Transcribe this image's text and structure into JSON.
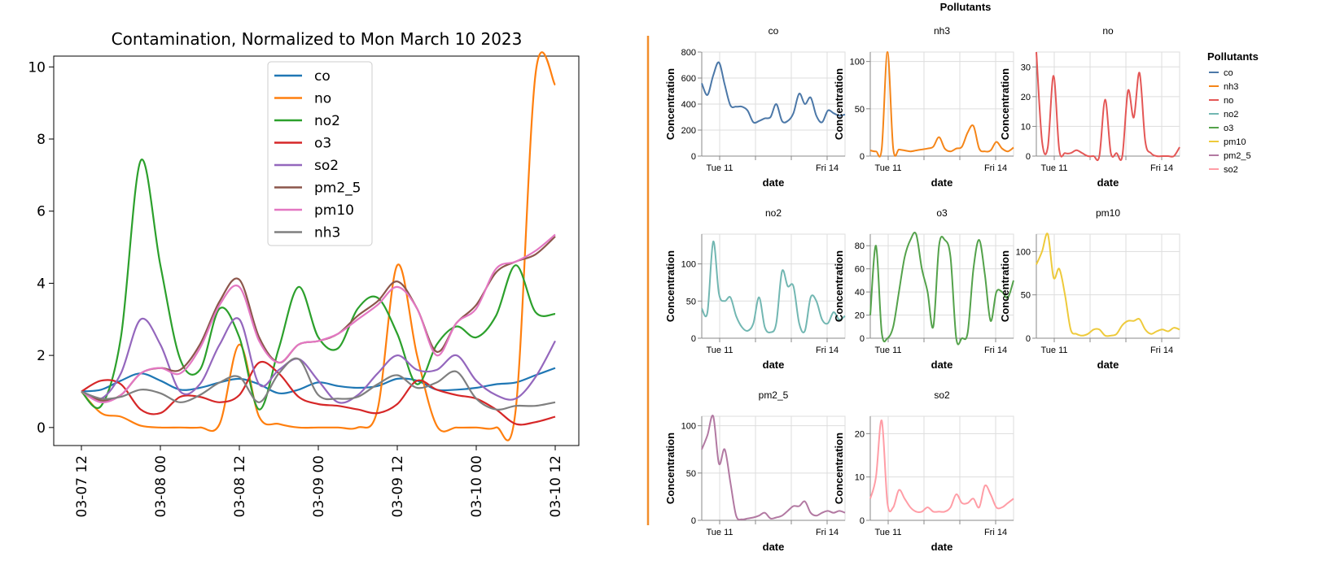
{
  "divider_color": "#f28e2b",
  "chart_data": [
    {
      "type": "line",
      "title": "Contamination, Normalized to Mon March 10 2023",
      "xlabel": "",
      "ylabel": "",
      "x": [
        "03-07 12:00",
        "03-07 15:00",
        "03-07 18:00",
        "03-07 21:00",
        "03-08 00:00",
        "03-08 03:00",
        "03-08 06:00",
        "03-08 09:00",
        "03-08 12:00",
        "03-08 15:00",
        "03-08 18:00",
        "03-08 21:00",
        "03-09 00:00",
        "03-09 03:00",
        "03-09 06:00",
        "03-09 09:00",
        "03-09 12:00",
        "03-09 15:00",
        "03-09 18:00",
        "03-09 21:00",
        "03-10 00:00",
        "03-10 03:00",
        "03-10 06:00",
        "03-10 09:00",
        "03-10 12:00"
      ],
      "xticks": [
        "03-07 12",
        "03-08 00",
        "03-08 12",
        "03-09 00",
        "03-09 12",
        "03-10 00",
        "03-10 12"
      ],
      "ylim": [
        -0.5,
        10.3
      ],
      "yticks": [
        0,
        2,
        4,
        6,
        8,
        10
      ],
      "legend_position": "upper-center",
      "series": [
        {
          "name": "co",
          "color": "#1f77b4",
          "values": [
            1.0,
            1.05,
            1.3,
            1.5,
            1.3,
            1.05,
            1.1,
            1.25,
            1.35,
            1.2,
            0.95,
            1.05,
            1.25,
            1.15,
            1.1,
            1.15,
            1.35,
            1.3,
            1.05,
            1.05,
            1.1,
            1.2,
            1.25,
            1.45,
            1.65
          ]
        },
        {
          "name": "no",
          "color": "#ff7f0e",
          "values": [
            1.0,
            0.4,
            0.3,
            0.05,
            0.0,
            0.0,
            0.0,
            0.1,
            2.3,
            0.3,
            0.1,
            0.0,
            0.0,
            0.0,
            0.0,
            0.5,
            4.5,
            2.0,
            0.05,
            0.0,
            0.0,
            0.0,
            0.5,
            9.8,
            9.5
          ]
        },
        {
          "name": "no2",
          "color": "#2ca02c",
          "values": [
            1.0,
            0.6,
            2.5,
            7.4,
            4.5,
            1.9,
            1.6,
            3.3,
            2.5,
            0.5,
            2.2,
            3.9,
            2.5,
            2.2,
            3.3,
            3.6,
            2.6,
            1.2,
            2.3,
            2.8,
            2.5,
            3.1,
            4.5,
            3.2,
            3.15
          ]
        },
        {
          "name": "o3",
          "color": "#d62728",
          "values": [
            1.0,
            1.3,
            1.2,
            0.5,
            0.4,
            0.85,
            0.85,
            0.7,
            0.9,
            1.8,
            1.5,
            0.85,
            0.65,
            0.6,
            0.5,
            0.4,
            0.65,
            1.3,
            1.05,
            0.9,
            0.8,
            0.5,
            0.1,
            0.15,
            0.3
          ]
        },
        {
          "name": "so2",
          "color": "#9467bd",
          "values": [
            1.0,
            0.8,
            1.5,
            3.0,
            2.3,
            1.0,
            1.2,
            2.3,
            3.0,
            1.2,
            1.6,
            1.9,
            1.3,
            0.7,
            0.9,
            1.5,
            2.0,
            1.6,
            1.6,
            2.0,
            1.3,
            0.9,
            0.8,
            1.4,
            2.4
          ]
        },
        {
          "name": "pm2_5",
          "color": "#8c564b",
          "values": [
            1.0,
            0.75,
            0.9,
            1.5,
            1.65,
            1.6,
            2.3,
            3.5,
            4.1,
            2.5,
            1.8,
            2.3,
            2.4,
            2.6,
            3.1,
            3.5,
            4.05,
            3.3,
            2.1,
            2.9,
            3.4,
            4.3,
            4.6,
            4.8,
            5.3
          ]
        },
        {
          "name": "pm10",
          "color": "#e377c2",
          "values": [
            1.0,
            0.7,
            0.9,
            1.5,
            1.65,
            1.5,
            2.2,
            3.4,
            3.9,
            2.4,
            1.8,
            2.3,
            2.4,
            2.6,
            3.0,
            3.4,
            3.9,
            3.3,
            2.0,
            2.9,
            3.3,
            4.4,
            4.6,
            4.9,
            5.35
          ]
        },
        {
          "name": "nh3",
          "color": "#7f7f7f",
          "values": [
            1.0,
            0.8,
            0.85,
            1.05,
            0.95,
            0.7,
            0.9,
            1.25,
            1.4,
            0.7,
            1.5,
            1.9,
            0.9,
            0.8,
            0.85,
            1.2,
            1.45,
            1.1,
            1.25,
            1.55,
            0.8,
            0.5,
            0.6,
            0.6,
            0.7
          ]
        }
      ]
    },
    {
      "type": "line",
      "title": "Pollutants",
      "facet_by": "Pollutants",
      "x_dates": [
        "2023-03-10T12:00",
        "2023-03-14T12:00"
      ],
      "xticks": [
        {
          "date": "2023-03-11",
          "label": "Tue 11"
        },
        {
          "date": "2023-03-14",
          "label": "Fri 14"
        }
      ],
      "xlabel": "date",
      "ylabel": "Concentration",
      "legend": {
        "title": "Pollutants",
        "position": "right"
      },
      "grid": true,
      "facets": [
        {
          "name": "co",
          "color": "#4c78a8",
          "ylim": [
            0,
            800
          ],
          "yticks": [
            0,
            200,
            400,
            600,
            800
          ],
          "values": [
            560,
            470,
            620,
            720,
            550,
            390,
            380,
            380,
            350,
            260,
            270,
            290,
            300,
            400,
            270,
            270,
            330,
            480,
            400,
            450,
            310,
            260,
            350,
            330,
            310,
            320
          ]
        },
        {
          "name": "nh3",
          "color": "#f58518",
          "ylim": [
            0,
            110
          ],
          "yticks": [
            0,
            50,
            100
          ],
          "values": [
            6,
            5,
            8,
            112,
            8,
            7,
            6,
            5,
            6,
            7,
            8,
            10,
            20,
            8,
            5,
            8,
            10,
            25,
            32,
            8,
            5,
            6,
            15,
            8,
            5,
            9
          ]
        },
        {
          "name": "no",
          "color": "#e45756",
          "ylim": [
            0,
            35
          ],
          "yticks": [
            0,
            10,
            20,
            30
          ],
          "values": [
            35,
            5,
            3,
            27,
            2,
            1,
            1,
            2,
            1,
            0,
            0,
            0,
            19,
            1,
            1,
            0,
            22,
            13,
            28,
            5,
            1,
            0,
            0,
            0,
            0,
            3
          ]
        },
        {
          "name": "no2",
          "color": "#72b7b2",
          "ylim": [
            0,
            140
          ],
          "yticks": [
            0,
            50,
            100
          ],
          "values": [
            40,
            35,
            130,
            60,
            50,
            55,
            30,
            15,
            10,
            20,
            55,
            15,
            8,
            20,
            90,
            70,
            70,
            20,
            10,
            55,
            50,
            25,
            20,
            35,
            25,
            30
          ]
        },
        {
          "name": "o3",
          "color": "#54a24b",
          "ylim": [
            0,
            90
          ],
          "yticks": [
            0,
            20,
            40,
            60,
            80
          ],
          "values": [
            20,
            80,
            5,
            0,
            10,
            40,
            70,
            85,
            90,
            60,
            40,
            10,
            80,
            85,
            70,
            0,
            0,
            5,
            60,
            85,
            55,
            15,
            40,
            40,
            35,
            50
          ]
        },
        {
          "name": "pm10",
          "color": "#eeca3b",
          "ylim": [
            0,
            120
          ],
          "yticks": [
            0,
            50,
            100
          ],
          "values": [
            85,
            100,
            120,
            70,
            80,
            50,
            10,
            5,
            3,
            5,
            10,
            10,
            3,
            3,
            5,
            15,
            20,
            20,
            22,
            10,
            5,
            8,
            10,
            8,
            12,
            10
          ]
        },
        {
          "name": "pm2_5",
          "color": "#b279a2",
          "ylim": [
            0,
            110
          ],
          "yticks": [
            0,
            50,
            100
          ],
          "values": [
            75,
            90,
            110,
            60,
            75,
            40,
            5,
            1,
            2,
            3,
            5,
            8,
            2,
            3,
            5,
            10,
            15,
            15,
            20,
            8,
            5,
            8,
            10,
            8,
            10,
            8
          ]
        },
        {
          "name": "so2",
          "color": "#ff9da6",
          "ylim": [
            0,
            24
          ],
          "yticks": [
            0,
            10,
            20
          ],
          "values": [
            5,
            10,
            23,
            4,
            3,
            7,
            5,
            3,
            2,
            2,
            3,
            2,
            2,
            2,
            3,
            6,
            4,
            4,
            5,
            3,
            8,
            6,
            3,
            3,
            4,
            5
          ]
        }
      ]
    }
  ]
}
